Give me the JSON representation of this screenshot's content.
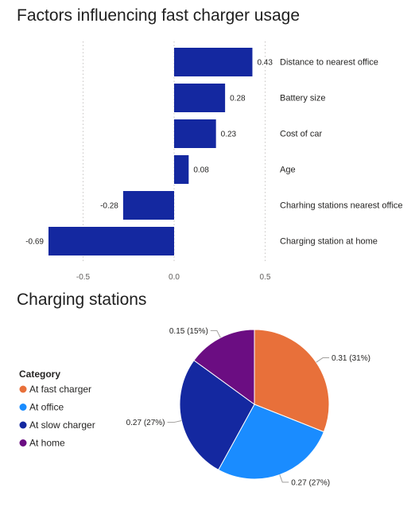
{
  "colors": {
    "bar": "#1428a0",
    "grid": "#c8c6c4",
    "text": "#252423",
    "axis": "#605e5c"
  },
  "chart_data": [
    {
      "type": "bar",
      "orientation": "horizontal",
      "title": "Factors influencing fast charger usage",
      "categories": [
        "Distance to nearest office",
        "Battery size",
        "Cost of car",
        "Age",
        "Charhing stations nearest office",
        "Charging station at home"
      ],
      "values": [
        0.43,
        0.28,
        0.23,
        0.08,
        -0.28,
        -0.69
      ],
      "data_labels": [
        "0.43",
        "0.28",
        "0.23",
        "0.08",
        "-0.28",
        "-0.69"
      ],
      "xlim": [
        -0.7,
        0.5
      ],
      "xticks": [
        -0.5,
        0.0,
        0.5
      ],
      "xtick_labels": [
        "-0.5",
        "0.0",
        "0.5"
      ],
      "grid": "vertical dotted",
      "xlabel": "",
      "ylabel": ""
    },
    {
      "type": "pie",
      "title": "Charging stations",
      "legend_title": "Category",
      "legend_position": "left",
      "labels": [
        "At fast charger",
        "At office",
        "At slow charger",
        "At home"
      ],
      "values": [
        0.31,
        0.27,
        0.27,
        0.15
      ],
      "data_labels": [
        "0.31 (31%)",
        "0.27 (27%)",
        "0.27 (27%)",
        "0.15 (15%)"
      ],
      "colors": [
        "#e8703a",
        "#1a8cff",
        "#1428a0",
        "#6b0d82"
      ]
    }
  ]
}
